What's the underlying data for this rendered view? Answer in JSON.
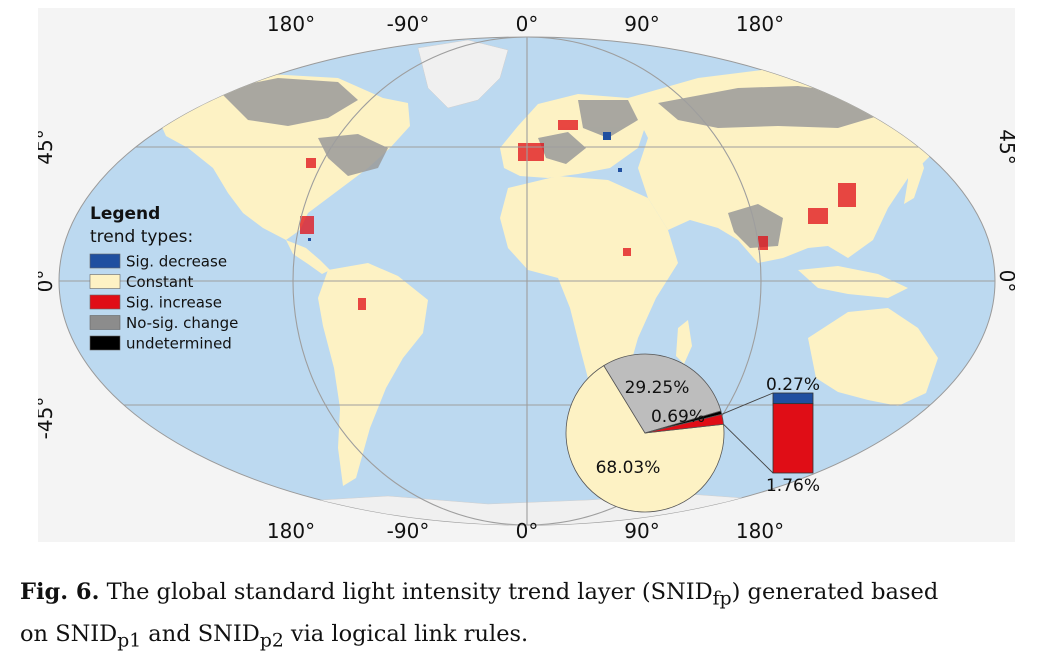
{
  "map": {
    "top_lon_labels": [
      "180°",
      "-90°",
      "0°",
      "90°",
      "180°"
    ],
    "bottom_lon_labels": [
      "180°",
      "-90°",
      "0°",
      "90°",
      "180°"
    ],
    "left_lat_labels": [
      "45°",
      "0°",
      "-45°"
    ],
    "right_lat_labels": [
      "45°",
      "0°"
    ]
  },
  "legend": {
    "title": "Legend",
    "subtitle": "trend types:",
    "items": [
      {
        "label": "Sig. decrease",
        "color": "#1f4fa0"
      },
      {
        "label": "Constant",
        "color": "#fdf2c4"
      },
      {
        "label": "Sig. increase",
        "color": "#e00d16"
      },
      {
        "label": "No-sig. change",
        "color": "#8c8c8c"
      },
      {
        "label": "undetermined",
        "color": "#000000"
      }
    ]
  },
  "chart_data": {
    "type": "pie",
    "slices": [
      {
        "label": "68.03%",
        "value": 68.03,
        "color": "#fdf2c4"
      },
      {
        "label": "29.25%",
        "value": 29.25,
        "color": "#bdbdbd"
      },
      {
        "label": "0.69%",
        "value": 0.69,
        "color": "#000000"
      },
      {
        "label": "",
        "value": 2.03,
        "color": "#e00d16"
      }
    ],
    "bar_breakdown": [
      {
        "label": "0.27%",
        "value": 0.27,
        "color": "#1f4fa0"
      },
      {
        "label": "1.76%",
        "value": 1.76,
        "color": "#e00d16"
      }
    ]
  },
  "caption": {
    "fig": "Fig. 6.",
    "text1": " The global standard light intensity trend layer (SNID",
    "sub_fp": "fp",
    "text2": ") generated based",
    "text3": "on SNID",
    "sub_p1": "p1",
    "text4": " and SNID",
    "sub_p2": "p2",
    "text5": " via logical link rules."
  }
}
